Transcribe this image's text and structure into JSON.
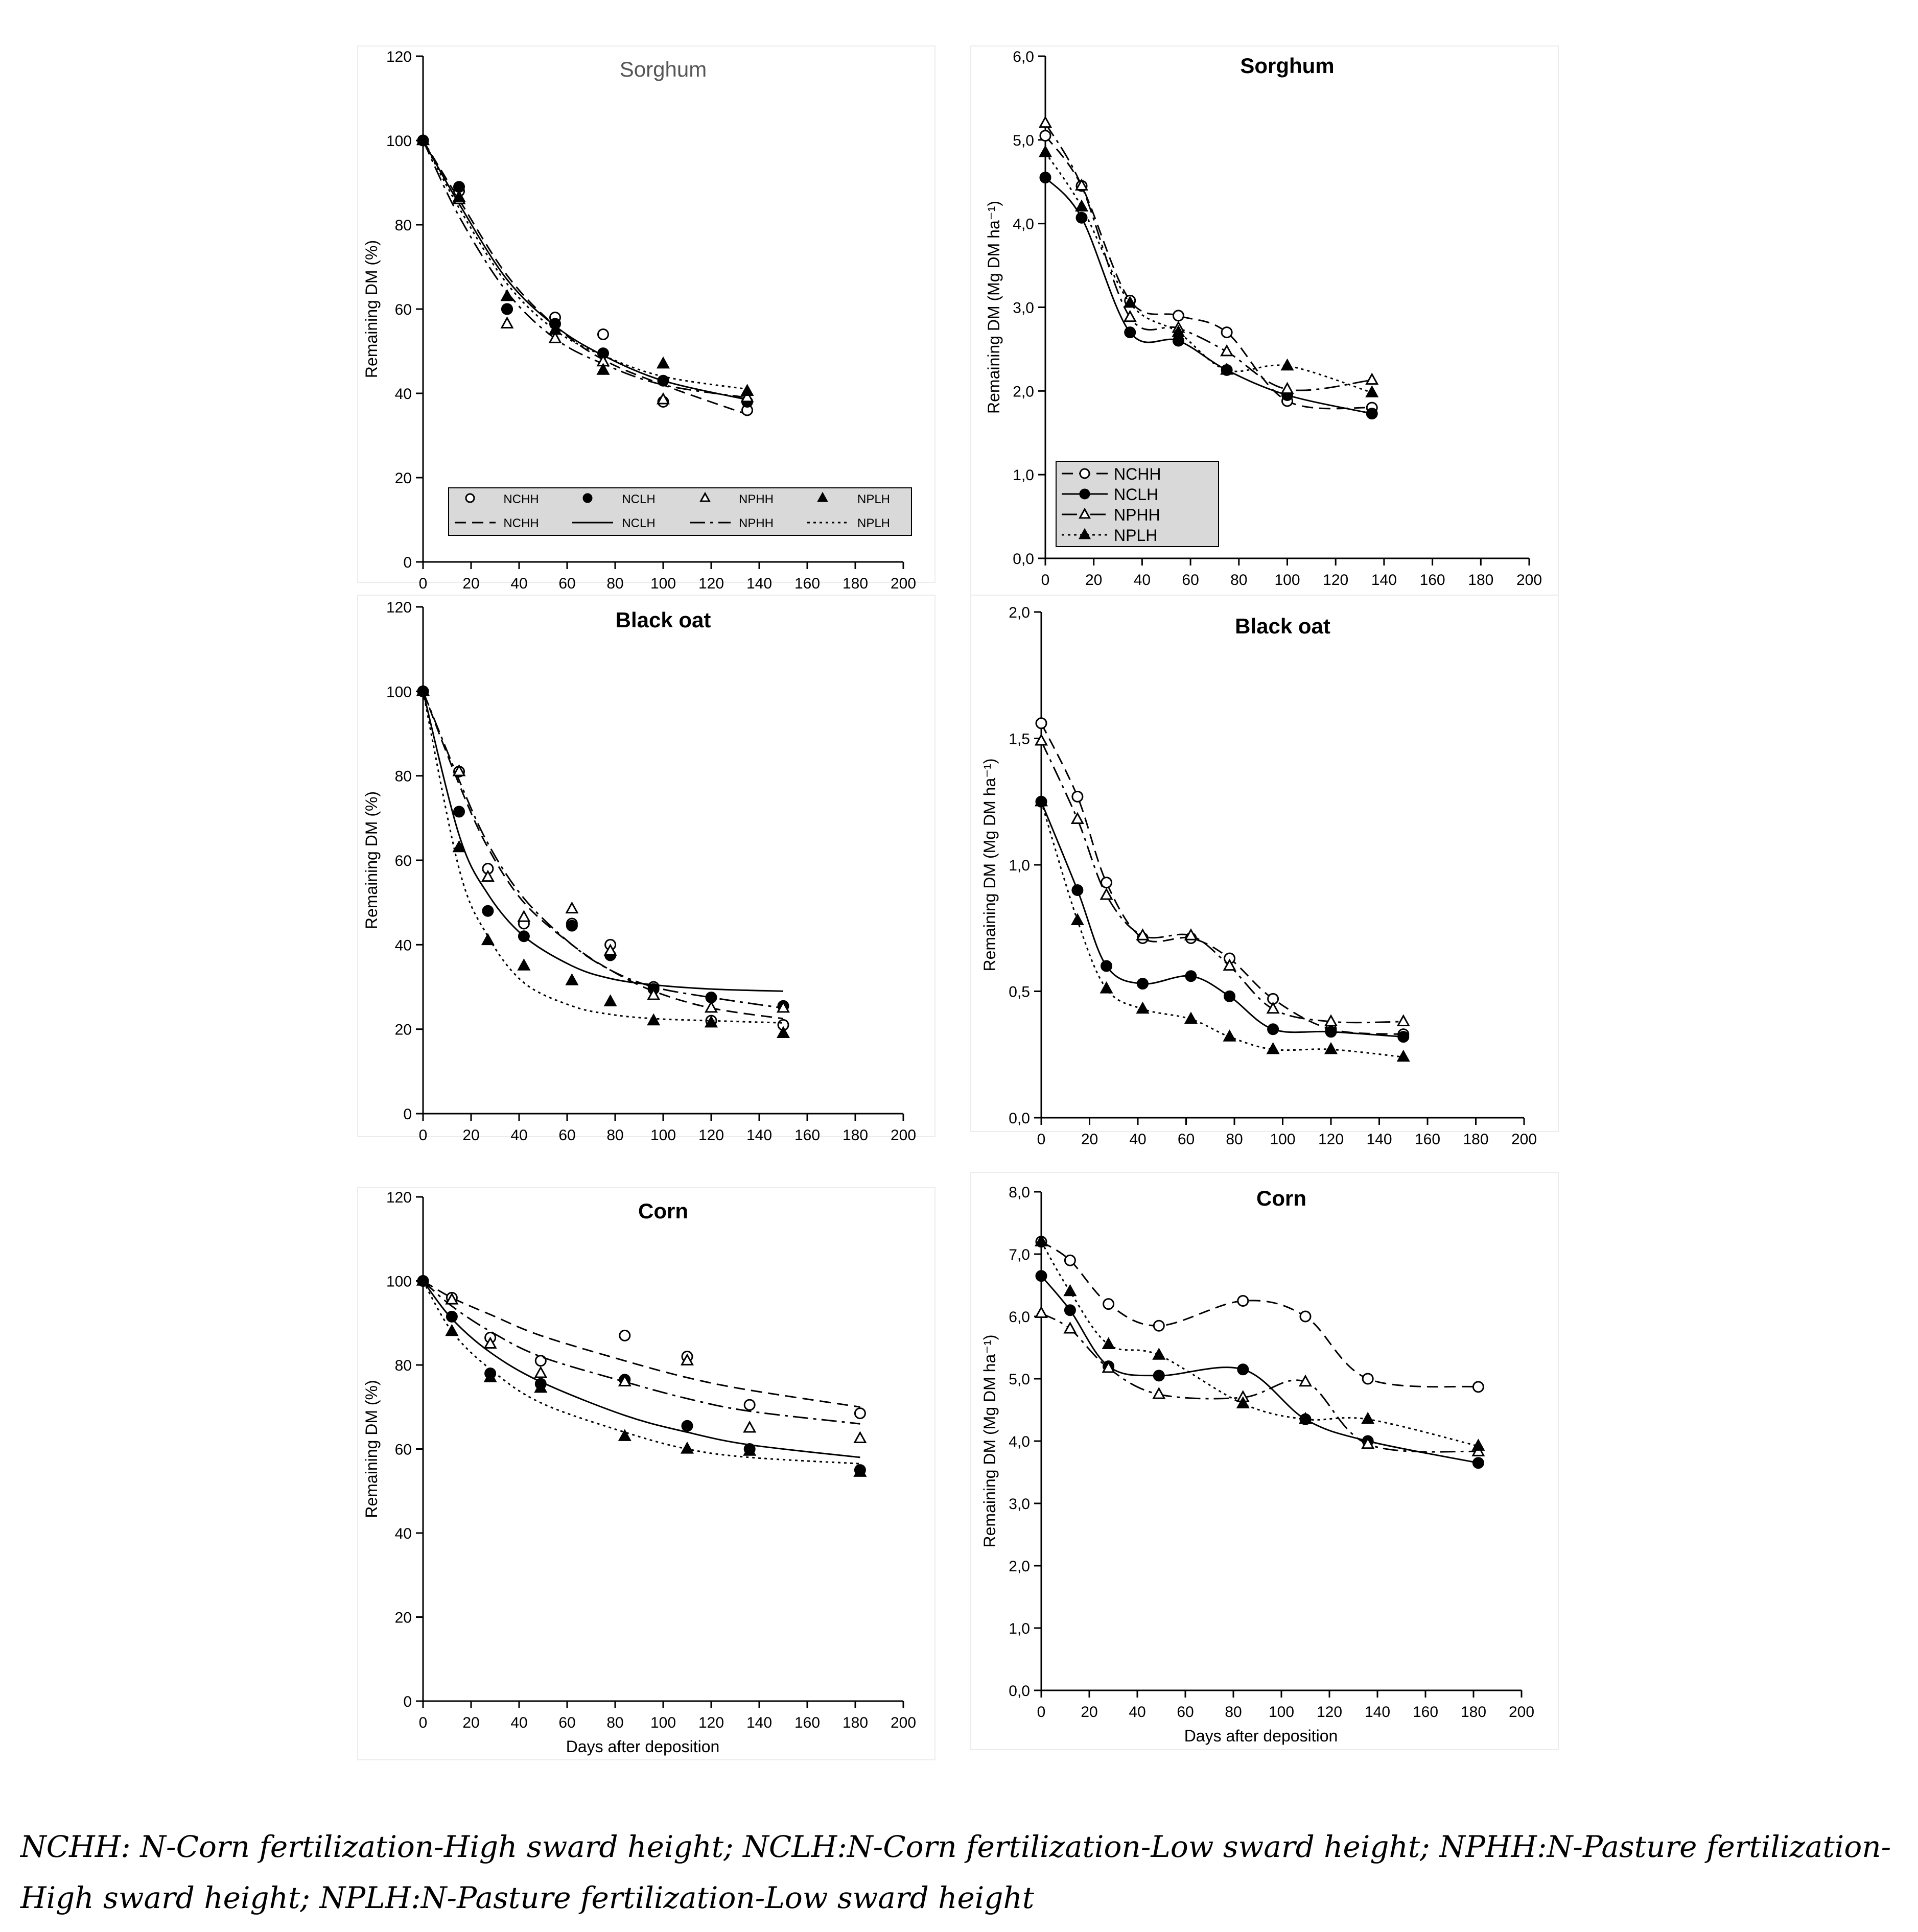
{
  "caption": "NCHH: N-Corn fertilization-High sward height; NCLH:N-Corn fertilization-Low sward height; NPHH:N-Pasture fertilization-High sward height; NPLH:N-Pasture fertilization-Low sward height",
  "series_names": [
    "NCHH",
    "NCLH",
    "NPHH",
    "NPLH"
  ],
  "chart_data": [
    {
      "id": "sorghum-pct",
      "type": "scatter",
      "title": "Sorghum",
      "xlabel": "",
      "ylabel": "Remaining DM (%)",
      "xlim": [
        0,
        200
      ],
      "xticks": [
        0,
        20,
        40,
        60,
        80,
        100,
        120,
        140,
        160,
        180,
        200
      ],
      "ylim": [
        0,
        120
      ],
      "yticks": [
        0,
        20,
        40,
        60,
        80,
        100,
        120
      ],
      "ytick_labels": [
        "0",
        "20",
        "40",
        "60",
        "80",
        "100",
        "120"
      ],
      "legend": "bottom-inside-boxed",
      "series": [
        {
          "name": "NCHH",
          "marker": "circle-open",
          "line": "dashed",
          "x": [
            0,
            15,
            35,
            55,
            75,
            100,
            135
          ],
          "y": [
            100,
            88,
            60,
            58,
            54,
            38,
            36
          ],
          "fit_x": [
            0,
            15,
            35,
            55,
            75,
            100,
            135
          ],
          "fit_y": [
            100,
            86,
            68,
            56,
            48,
            42,
            35
          ]
        },
        {
          "name": "NCLH",
          "marker": "circle-filled",
          "line": "solid",
          "x": [
            0,
            15,
            35,
            55,
            75,
            100,
            135
          ],
          "y": [
            100,
            89,
            60,
            56.5,
            49.5,
            43,
            38
          ],
          "fit_x": [
            0,
            15,
            35,
            55,
            75,
            100,
            135
          ],
          "fit_y": [
            100,
            85,
            67,
            56,
            49,
            43,
            38.5
          ]
        },
        {
          "name": "NPHH",
          "marker": "triangle-open",
          "line": "dashdot",
          "x": [
            0,
            15,
            35,
            55,
            75,
            100,
            135
          ],
          "y": [
            100,
            86,
            56.5,
            53,
            47.5,
            38.5,
            39
          ],
          "fit_x": [
            0,
            15,
            35,
            55,
            75,
            100,
            135
          ],
          "fit_y": [
            100,
            82,
            64,
            53,
            47,
            42,
            39
          ]
        },
        {
          "name": "NPLH",
          "marker": "triangle-filled",
          "line": "dotted",
          "x": [
            0,
            15,
            35,
            55,
            75,
            100,
            135
          ],
          "y": [
            100,
            86.5,
            63,
            55,
            45.5,
            47,
            40.5
          ],
          "fit_x": [
            0,
            15,
            35,
            55,
            75,
            100,
            135
          ],
          "fit_y": [
            100,
            84,
            66,
            55,
            49,
            44,
            41
          ]
        }
      ]
    },
    {
      "id": "sorghum-mg",
      "type": "line",
      "title": "Sorghum",
      "xlabel": "",
      "ylabel": "Remaining DM (Mg DM ha⁻¹)",
      "xlim": [
        0,
        200
      ],
      "xticks": [
        0,
        20,
        40,
        60,
        80,
        100,
        120,
        140,
        160,
        180,
        200
      ],
      "ylim": [
        0,
        6
      ],
      "yticks": [
        0,
        1,
        2,
        3,
        4,
        5,
        6
      ],
      "ytick_labels": [
        "0,0",
        "1,0",
        "2,0",
        "3,0",
        "4,0",
        "5,0",
        "6,0"
      ],
      "legend": "bottom-left",
      "series": [
        {
          "name": "NCHH",
          "marker": "circle-open",
          "line": "dashed",
          "x": [
            0,
            15,
            35,
            55,
            75,
            100,
            135
          ],
          "y": [
            5.05,
            4.45,
            3.08,
            2.9,
            2.7,
            1.88,
            1.8
          ]
        },
        {
          "name": "NCLH",
          "marker": "circle-filled",
          "line": "solid",
          "x": [
            0,
            15,
            35,
            55,
            75,
            100,
            135
          ],
          "y": [
            4.55,
            4.07,
            2.7,
            2.6,
            2.25,
            1.95,
            1.73
          ]
        },
        {
          "name": "NPHH",
          "marker": "triangle-open",
          "line": "dashdot",
          "x": [
            0,
            15,
            35,
            55,
            75,
            100,
            135
          ],
          "y": [
            5.2,
            4.45,
            2.88,
            2.75,
            2.47,
            2.02,
            2.13
          ]
        },
        {
          "name": "NPLH",
          "marker": "triangle-filled",
          "line": "dotted",
          "x": [
            0,
            15,
            35,
            55,
            75,
            100,
            135
          ],
          "y": [
            4.85,
            4.2,
            3.05,
            2.7,
            2.25,
            2.3,
            1.98
          ]
        }
      ]
    },
    {
      "id": "blackoat-pct",
      "type": "scatter",
      "title": "Black oat",
      "xlabel": "",
      "ylabel": "Remaining DM (%)",
      "xlim": [
        0,
        200
      ],
      "xticks": [
        0,
        20,
        40,
        60,
        80,
        100,
        120,
        140,
        160,
        180,
        200
      ],
      "ylim": [
        0,
        120
      ],
      "yticks": [
        0,
        20,
        40,
        60,
        80,
        100,
        120
      ],
      "ytick_labels": [
        "0",
        "20",
        "40",
        "60",
        "80",
        "100",
        "120"
      ],
      "legend": "none",
      "series": [
        {
          "name": "NCHH",
          "marker": "circle-open",
          "line": "dashed",
          "x": [
            0,
            15,
            27,
            42,
            62,
            78,
            96,
            120,
            150
          ],
          "y": [
            100,
            81,
            58,
            45,
            45,
            40,
            30,
            22,
            21
          ],
          "fit_x": [
            0,
            15,
            27,
            42,
            62,
            78,
            96,
            120,
            150
          ],
          "fit_y": [
            100,
            78,
            63,
            50,
            40,
            34,
            29,
            25,
            22.5
          ]
        },
        {
          "name": "NCLH",
          "marker": "circle-filled",
          "line": "solid",
          "x": [
            0,
            15,
            27,
            42,
            62,
            78,
            96,
            120,
            150
          ],
          "y": [
            100,
            71.5,
            48,
            42,
            44.5,
            37.5,
            29.5,
            27.5,
            25.5
          ],
          "fit_x": [
            0,
            15,
            27,
            42,
            62,
            78,
            96,
            120,
            150
          ],
          "fit_y": [
            100,
            66,
            52,
            42,
            35,
            32,
            30.5,
            29.5,
            29
          ]
        },
        {
          "name": "NPHH",
          "marker": "triangle-open",
          "line": "dashdot",
          "x": [
            0,
            15,
            27,
            42,
            62,
            78,
            96,
            120,
            150
          ],
          "y": [
            100,
            81,
            56,
            46.5,
            48.5,
            38.5,
            28,
            25,
            25
          ],
          "fit_x": [
            0,
            15,
            27,
            42,
            62,
            78,
            96,
            120,
            150
          ],
          "fit_y": [
            100,
            79,
            64,
            51,
            40,
            34,
            30,
            27.5,
            25
          ]
        },
        {
          "name": "NPLH",
          "marker": "triangle-filled",
          "line": "dotted",
          "x": [
            0,
            15,
            27,
            42,
            62,
            78,
            96,
            120,
            150
          ],
          "y": [
            100,
            63,
            41,
            35,
            31.5,
            26.5,
            22,
            21.5,
            19
          ],
          "fit_x": [
            0,
            15,
            27,
            42,
            62,
            78,
            96,
            120,
            150
          ],
          "fit_y": [
            100,
            58,
            42,
            31,
            25.5,
            23.5,
            22.5,
            22,
            21.5
          ]
        }
      ]
    },
    {
      "id": "blackoat-mg",
      "type": "line",
      "title": "Black oat",
      "xlabel": "",
      "ylabel": "Remaining DM (Mg DM ha⁻¹)",
      "xlim": [
        0,
        200
      ],
      "xticks": [
        0,
        20,
        40,
        60,
        80,
        100,
        120,
        140,
        160,
        180,
        200
      ],
      "ylim": [
        0,
        2
      ],
      "yticks": [
        0,
        0.5,
        1,
        1.5,
        2
      ],
      "ytick_labels": [
        "0,0",
        "0,5",
        "1,0",
        "1,5",
        "2,0"
      ],
      "legend": "none",
      "series": [
        {
          "name": "NCHH",
          "marker": "circle-open",
          "line": "dashed",
          "x": [
            0,
            15,
            27,
            42,
            62,
            78,
            96,
            120,
            150
          ],
          "y": [
            1.56,
            1.27,
            0.93,
            0.71,
            0.71,
            0.63,
            0.47,
            0.35,
            0.33
          ]
        },
        {
          "name": "NCLH",
          "marker": "circle-filled",
          "line": "solid",
          "x": [
            0,
            15,
            27,
            42,
            62,
            78,
            96,
            120,
            150
          ],
          "y": [
            1.25,
            0.9,
            0.6,
            0.53,
            0.56,
            0.48,
            0.35,
            0.34,
            0.32
          ]
        },
        {
          "name": "NPHH",
          "marker": "triangle-open",
          "line": "dashdot",
          "x": [
            0,
            15,
            27,
            42,
            62,
            78,
            96,
            120,
            150
          ],
          "y": [
            1.49,
            1.18,
            0.88,
            0.72,
            0.72,
            0.6,
            0.43,
            0.38,
            0.38
          ]
        },
        {
          "name": "NPLH",
          "marker": "triangle-filled",
          "line": "dotted",
          "x": [
            0,
            15,
            27,
            42,
            62,
            78,
            96,
            120,
            150
          ],
          "y": [
            1.25,
            0.78,
            0.51,
            0.43,
            0.39,
            0.32,
            0.27,
            0.27,
            0.24
          ]
        }
      ]
    },
    {
      "id": "corn-pct",
      "type": "scatter",
      "title": "Corn",
      "xlabel": "Days after deposition",
      "ylabel": "Remaining DM (%)",
      "xlim": [
        0,
        200
      ],
      "xticks": [
        0,
        20,
        40,
        60,
        80,
        100,
        120,
        140,
        160,
        180,
        200
      ],
      "ylim": [
        0,
        120
      ],
      "yticks": [
        0,
        20,
        40,
        60,
        80,
        100,
        120
      ],
      "ytick_labels": [
        "0",
        "20",
        "40",
        "60",
        "80",
        "100",
        "120"
      ],
      "legend": "none",
      "series": [
        {
          "name": "NCHH",
          "marker": "circle-open",
          "line": "dashed",
          "x": [
            0,
            12,
            28,
            49,
            84,
            110,
            136,
            182
          ],
          "y": [
            100,
            96,
            86.5,
            81,
            87,
            82,
            70.5,
            68.5
          ],
          "fit_x": [
            0,
            12,
            28,
            49,
            84,
            110,
            136,
            182
          ],
          "fit_y": [
            100,
            96,
            92,
            87,
            81,
            77,
            74,
            70
          ]
        },
        {
          "name": "NCLH",
          "marker": "circle-filled",
          "line": "solid",
          "x": [
            0,
            12,
            28,
            49,
            84,
            110,
            136,
            182
          ],
          "y": [
            100,
            91.5,
            78,
            75.5,
            76.5,
            65.5,
            60,
            55
          ],
          "fit_x": [
            0,
            12,
            28,
            49,
            84,
            110,
            136,
            182
          ],
          "fit_y": [
            100,
            91,
            83,
            76,
            68,
            64,
            61,
            58
          ]
        },
        {
          "name": "NPHH",
          "marker": "triangle-open",
          "line": "dashdot",
          "x": [
            0,
            12,
            28,
            49,
            84,
            110,
            136,
            182
          ],
          "y": [
            100,
            95.5,
            85,
            78,
            76,
            81,
            65,
            62.5
          ],
          "fit_x": [
            0,
            12,
            28,
            49,
            84,
            110,
            136,
            182
          ],
          "fit_y": [
            100,
            94,
            88,
            82,
            76,
            72,
            69,
            66
          ]
        },
        {
          "name": "NPLH",
          "marker": "triangle-filled",
          "line": "dotted",
          "x": [
            0,
            12,
            28,
            49,
            84,
            110,
            136,
            182
          ],
          "y": [
            100,
            88,
            77,
            74.5,
            63,
            60,
            59.5,
            54.5
          ],
          "fit_x": [
            0,
            12,
            28,
            49,
            84,
            110,
            136,
            182
          ],
          "fit_y": [
            100,
            88,
            79,
            71,
            64,
            60,
            58,
            56.5
          ]
        }
      ]
    },
    {
      "id": "corn-mg",
      "type": "line",
      "title": "Corn",
      "xlabel": "Days after deposition",
      "ylabel": "Remaining DM (Mg DM ha⁻¹)",
      "xlim": [
        0,
        200
      ],
      "xticks": [
        0,
        20,
        40,
        60,
        80,
        100,
        120,
        140,
        160,
        180,
        200
      ],
      "ylim": [
        0,
        8
      ],
      "yticks": [
        0,
        1,
        2,
        3,
        4,
        5,
        6,
        7,
        8
      ],
      "ytick_labels": [
        "0,0",
        "1,0",
        "2,0",
        "3,0",
        "4,0",
        "5,0",
        "6,0",
        "7,0",
        "8,0"
      ],
      "legend": "none",
      "series": [
        {
          "name": "NCHH",
          "marker": "circle-open",
          "line": "dashed",
          "x": [
            0,
            12,
            28,
            49,
            84,
            110,
            136,
            182
          ],
          "y": [
            7.2,
            6.9,
            6.2,
            5.85,
            6.25,
            6.0,
            5.0,
            4.87
          ]
        },
        {
          "name": "NCLH",
          "marker": "circle-filled",
          "line": "solid",
          "x": [
            0,
            12,
            28,
            49,
            84,
            110,
            136,
            182
          ],
          "y": [
            6.65,
            6.1,
            5.2,
            5.05,
            5.15,
            4.35,
            4.0,
            3.65
          ]
        },
        {
          "name": "NPHH",
          "marker": "triangle-open",
          "line": "dashdot",
          "x": [
            0,
            12,
            28,
            49,
            84,
            110,
            136,
            182
          ],
          "y": [
            6.05,
            5.8,
            5.17,
            4.75,
            4.7,
            4.95,
            3.95,
            3.83
          ]
        },
        {
          "name": "NPLH",
          "marker": "triangle-filled",
          "line": "dotted",
          "x": [
            0,
            12,
            28,
            49,
            84,
            110,
            136,
            182
          ],
          "y": [
            7.2,
            6.4,
            5.55,
            5.38,
            4.6,
            4.35,
            4.35,
            3.92
          ]
        }
      ]
    }
  ]
}
